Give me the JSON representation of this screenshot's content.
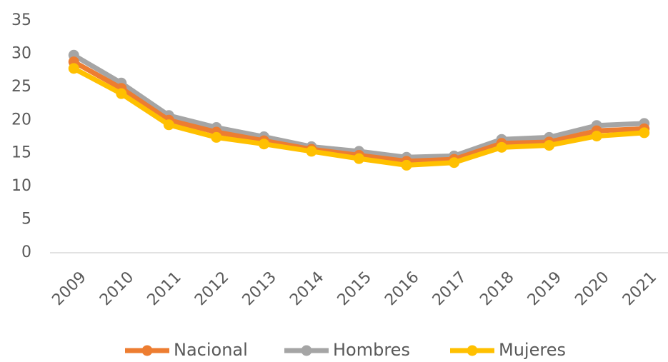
{
  "chart_data": {
    "type": "line",
    "categories": [
      "2009",
      "2010",
      "2011",
      "2012",
      "2013",
      "2014",
      "2015",
      "2016",
      "2017",
      "2018",
      "2019",
      "2020",
      "2021"
    ],
    "series": [
      {
        "name": "Nacional",
        "color": "#ED7D31",
        "values": [
          28.8,
          24.8,
          20.0,
          18.2,
          16.9,
          15.6,
          14.7,
          13.8,
          14.1,
          16.5,
          16.7,
          18.4,
          18.7
        ]
      },
      {
        "name": "Hombres",
        "color": "#A5A5A5",
        "values": [
          29.8,
          25.6,
          20.7,
          18.9,
          17.5,
          16.0,
          15.3,
          14.4,
          14.6,
          17.1,
          17.4,
          19.2,
          19.5
        ]
      },
      {
        "name": "Mujeres",
        "color": "#FFC000",
        "values": [
          27.8,
          24.0,
          19.3,
          17.4,
          16.4,
          15.3,
          14.2,
          13.2,
          13.6,
          15.9,
          16.2,
          17.6,
          18.1
        ]
      }
    ],
    "ylim": [
      0,
      35
    ],
    "yticks": [
      0,
      5,
      10,
      15,
      20,
      25,
      30,
      35
    ],
    "grid": false,
    "legend": "bottom"
  }
}
